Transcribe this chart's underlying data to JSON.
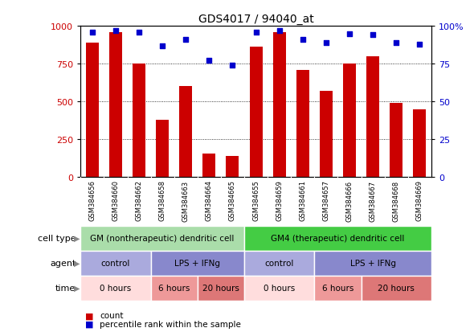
{
  "title": "GDS4017 / 94040_at",
  "samples": [
    "GSM384656",
    "GSM384660",
    "GSM384662",
    "GSM384658",
    "GSM384663",
    "GSM384664",
    "GSM384665",
    "GSM384655",
    "GSM384659",
    "GSM384661",
    "GSM384657",
    "GSM384666",
    "GSM384667",
    "GSM384668",
    "GSM384669"
  ],
  "counts": [
    890,
    960,
    750,
    380,
    600,
    155,
    140,
    860,
    960,
    710,
    570,
    750,
    800,
    490,
    450
  ],
  "percentiles": [
    96,
    97,
    96,
    87,
    91,
    77,
    74,
    96,
    97,
    91,
    89,
    95,
    94,
    89,
    88
  ],
  "bar_color": "#cc0000",
  "dot_color": "#0000cc",
  "ylim_left": [
    0,
    1000
  ],
  "ylim_right": [
    0,
    100
  ],
  "yticks_left": [
    0,
    250,
    500,
    750,
    1000
  ],
  "yticks_right": [
    0,
    25,
    50,
    75,
    100
  ],
  "cell_type_row": {
    "label": "cell type",
    "groups": [
      {
        "text": "GM (nontherapeutic) dendritic cell",
        "start": 0,
        "end": 7,
        "color": "#aaddaa"
      },
      {
        "text": "GM4 (therapeutic) dendritic cell",
        "start": 7,
        "end": 15,
        "color": "#44cc44"
      }
    ]
  },
  "agent_row": {
    "label": "agent",
    "groups": [
      {
        "text": "control",
        "start": 0,
        "end": 3,
        "color": "#aaaadd"
      },
      {
        "text": "LPS + IFNg",
        "start": 3,
        "end": 7,
        "color": "#8888cc"
      },
      {
        "text": "control",
        "start": 7,
        "end": 10,
        "color": "#aaaadd"
      },
      {
        "text": "LPS + IFNg",
        "start": 10,
        "end": 15,
        "color": "#8888cc"
      }
    ]
  },
  "time_row": {
    "label": "time",
    "groups": [
      {
        "text": "0 hours",
        "start": 0,
        "end": 3,
        "color": "#ffdddd"
      },
      {
        "text": "6 hours",
        "start": 3,
        "end": 5,
        "color": "#ee9999"
      },
      {
        "text": "20 hours",
        "start": 5,
        "end": 7,
        "color": "#dd7777"
      },
      {
        "text": "0 hours",
        "start": 7,
        "end": 10,
        "color": "#ffdddd"
      },
      {
        "text": "6 hours",
        "start": 10,
        "end": 12,
        "color": "#ee9999"
      },
      {
        "text": "20 hours",
        "start": 12,
        "end": 15,
        "color": "#dd7777"
      }
    ]
  },
  "legend_items": [
    {
      "label": "count",
      "color": "#cc0000"
    },
    {
      "label": "percentile rank within the sample",
      "color": "#0000cc"
    }
  ],
  "bg_color": "#ffffff",
  "tick_label_color_left": "#cc0000",
  "tick_label_color_right": "#0000cc",
  "xtick_bg_color": "#cccccc",
  "row_label_color": "#888888"
}
